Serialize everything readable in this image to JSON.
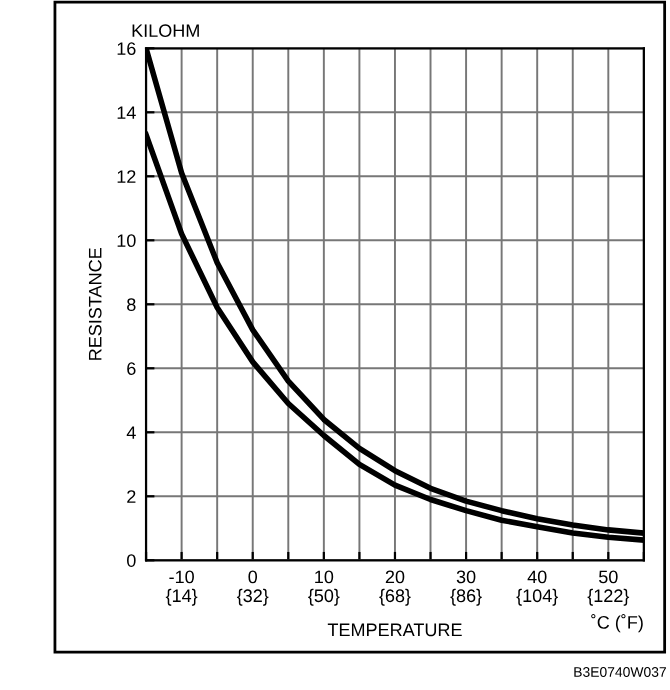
{
  "chart_data": {
    "type": "line",
    "xlabel": "TEMPERATURE",
    "ylabel": "RESISTANCE",
    "annotations": [
      "KILOHM",
      "˚C (˚F)",
      "B3E0740W037"
    ],
    "x": [
      -15,
      -10,
      -5,
      0,
      5,
      10,
      15,
      20,
      25,
      30,
      35,
      40,
      45,
      50,
      55
    ],
    "series": [
      {
        "color": "#000000",
        "values": [
          16,
          12.1,
          9.3,
          7.2,
          5.6,
          4.4,
          3.5,
          2.8,
          2.25,
          1.85,
          1.55,
          1.3,
          1.1,
          0.95,
          0.85
        ]
      },
      {
        "color": "#000000",
        "values": [
          13.3,
          10.2,
          7.9,
          6.2,
          4.9,
          3.9,
          3.0,
          2.35,
          1.9,
          1.55,
          1.25,
          1.05,
          0.85,
          0.72,
          0.63
        ]
      }
    ],
    "xlim": [
      -15,
      55
    ],
    "xticks": [
      {
        "value": -15,
        "label": null
      },
      -10,
      {
        "value": -5,
        "label": null
      },
      0,
      {
        "value": 5,
        "label": null
      },
      10,
      {
        "value": 15,
        "label": null
      },
      20,
      {
        "value": 25,
        "label": null
      },
      30,
      {
        "value": 35,
        "label": null
      },
      40,
      {
        "value": 45,
        "label": null
      },
      50,
      {
        "value": 55,
        "label": null
      }
    ],
    "x2lim": [
      5,
      131
    ],
    "x2ticks": [
      {
        "value": 14,
        "label": "{14}"
      },
      {
        "value": 32,
        "label": "{32}"
      },
      {
        "value": 50,
        "label": "{50}"
      },
      {
        "value": 68,
        "label": "{68}"
      },
      {
        "value": 86,
        "label": "{86}"
      },
      {
        "value": 104,
        "label": "{104}"
      },
      {
        "value": 122,
        "label": "{122}"
      }
    ],
    "ylim": [
      0,
      16
    ],
    "yticks": [
      0,
      2,
      4,
      6,
      8,
      10,
      12,
      14,
      16
    ],
    "grid": true,
    "line_style": "solid",
    "marker": "none"
  }
}
